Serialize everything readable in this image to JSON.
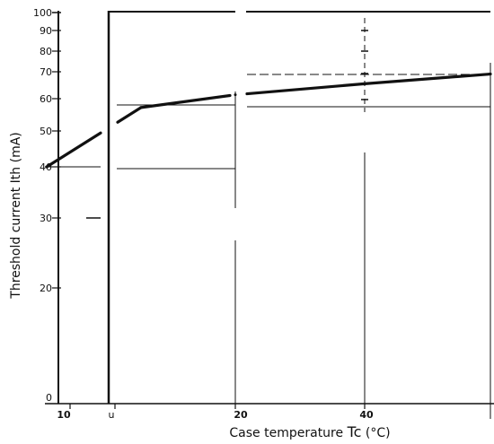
{
  "chart_data": {
    "type": "line",
    "title": "",
    "xlabel": "Case temperature Tc(°C)",
    "xlabel_main": "Case temperature ",
    "xlabel_symbol": "Tc",
    "xlabel_unit": "(°C)",
    "ylabel": "Threshold current Ith (mA)",
    "y_scale": "log",
    "ylim": [
      0,
      100
    ],
    "y_ticks": [
      100,
      90,
      80,
      70,
      60,
      50,
      40,
      30,
      20,
      0
    ],
    "y_tick_labels": [
      "100",
      "90",
      "80",
      "70",
      "60",
      "50",
      "40",
      "30",
      "20",
      "0"
    ],
    "x_tick_labels": [
      "10",
      "u",
      "20",
      "40"
    ],
    "grid": false,
    "legend": "none",
    "series": [
      {
        "values": [
          {
            "x": 0,
            "y": 40
          },
          {
            "x": 10,
            "y": 42
          },
          {
            "x": 20,
            "y": 49
          },
          {
            "x": 40,
            "y": 56
          },
          {
            "x": 60,
            "y": 63
          }
        ]
      }
    ]
  }
}
